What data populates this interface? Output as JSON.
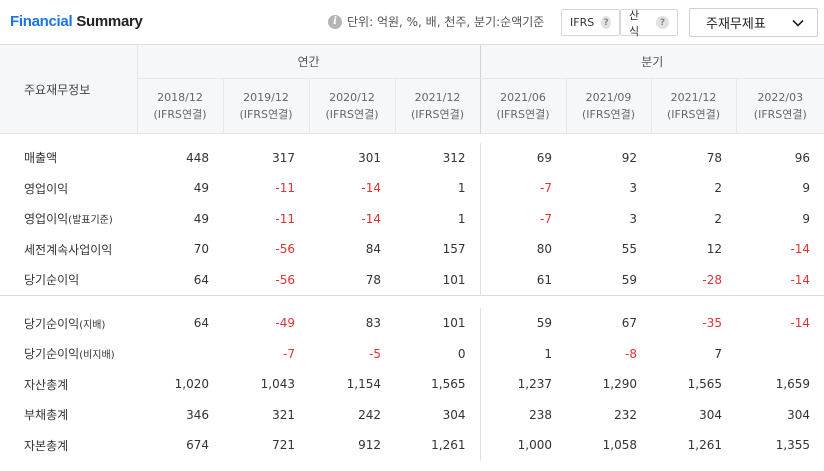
{
  "header": {
    "title_blue": "Financial",
    "title_black": "Summary",
    "unit_text": "단위: 억원, %, 배, 천주, 분기:순액기준",
    "ifrs_label": "IFRS",
    "calc_label": "산식",
    "select_value": "주재무제표"
  },
  "table": {
    "row_header": "주요재무정보",
    "group_annual": "연간",
    "group_quarter": "분기",
    "columns": [
      {
        "period": "2018/12",
        "basis": "(IFRS연결)"
      },
      {
        "period": "2019/12",
        "basis": "(IFRS연결)"
      },
      {
        "period": "2020/12",
        "basis": "(IFRS연결)"
      },
      {
        "period": "2021/12",
        "basis": "(IFRS연결)"
      },
      {
        "period": "2021/06",
        "basis": "(IFRS연결)"
      },
      {
        "period": "2021/09",
        "basis": "(IFRS연결)"
      },
      {
        "period": "2021/12",
        "basis": "(IFRS연결)"
      },
      {
        "period": "2022/03",
        "basis": "(IFRS연결)"
      }
    ],
    "rows": [
      {
        "label": "매출액",
        "suffix": "",
        "values": [
          "448",
          "317",
          "301",
          "312",
          "69",
          "92",
          "78",
          "96"
        ]
      },
      {
        "label": "영업이익",
        "suffix": "",
        "values": [
          "49",
          "-11",
          "-14",
          "1",
          "-7",
          "3",
          "2",
          "9"
        ]
      },
      {
        "label": "영업이익",
        "suffix": "(발표기준)",
        "values": [
          "49",
          "-11",
          "-14",
          "1",
          "-7",
          "3",
          "2",
          "9"
        ]
      },
      {
        "label": "세전계속사업이익",
        "suffix": "",
        "values": [
          "70",
          "-56",
          "84",
          "157",
          "80",
          "55",
          "12",
          "-14"
        ]
      },
      {
        "label": "당기순이익",
        "suffix": "",
        "values": [
          "64",
          "-56",
          "78",
          "101",
          "61",
          "59",
          "-28",
          "-14"
        ]
      },
      {
        "label": "당기순이익",
        "suffix": "(지배)",
        "values": [
          "64",
          "-49",
          "83",
          "101",
          "59",
          "67",
          "-35",
          "-14"
        ]
      },
      {
        "label": "당기순이익",
        "suffix": "(비지배)",
        "values": [
          "",
          "-7",
          "-5",
          "0",
          "1",
          "-8",
          "7",
          ""
        ]
      },
      {
        "label": "자산총계",
        "suffix": "",
        "values": [
          "1,020",
          "1,043",
          "1,154",
          "1,565",
          "1,237",
          "1,290",
          "1,565",
          "1,659"
        ]
      },
      {
        "label": "부채총계",
        "suffix": "",
        "values": [
          "346",
          "321",
          "242",
          "304",
          "238",
          "232",
          "304",
          "304"
        ]
      },
      {
        "label": "자본총계",
        "suffix": "",
        "values": [
          "674",
          "721",
          "912",
          "1,261",
          "1,000",
          "1,058",
          "1,261",
          "1,355"
        ]
      }
    ]
  }
}
